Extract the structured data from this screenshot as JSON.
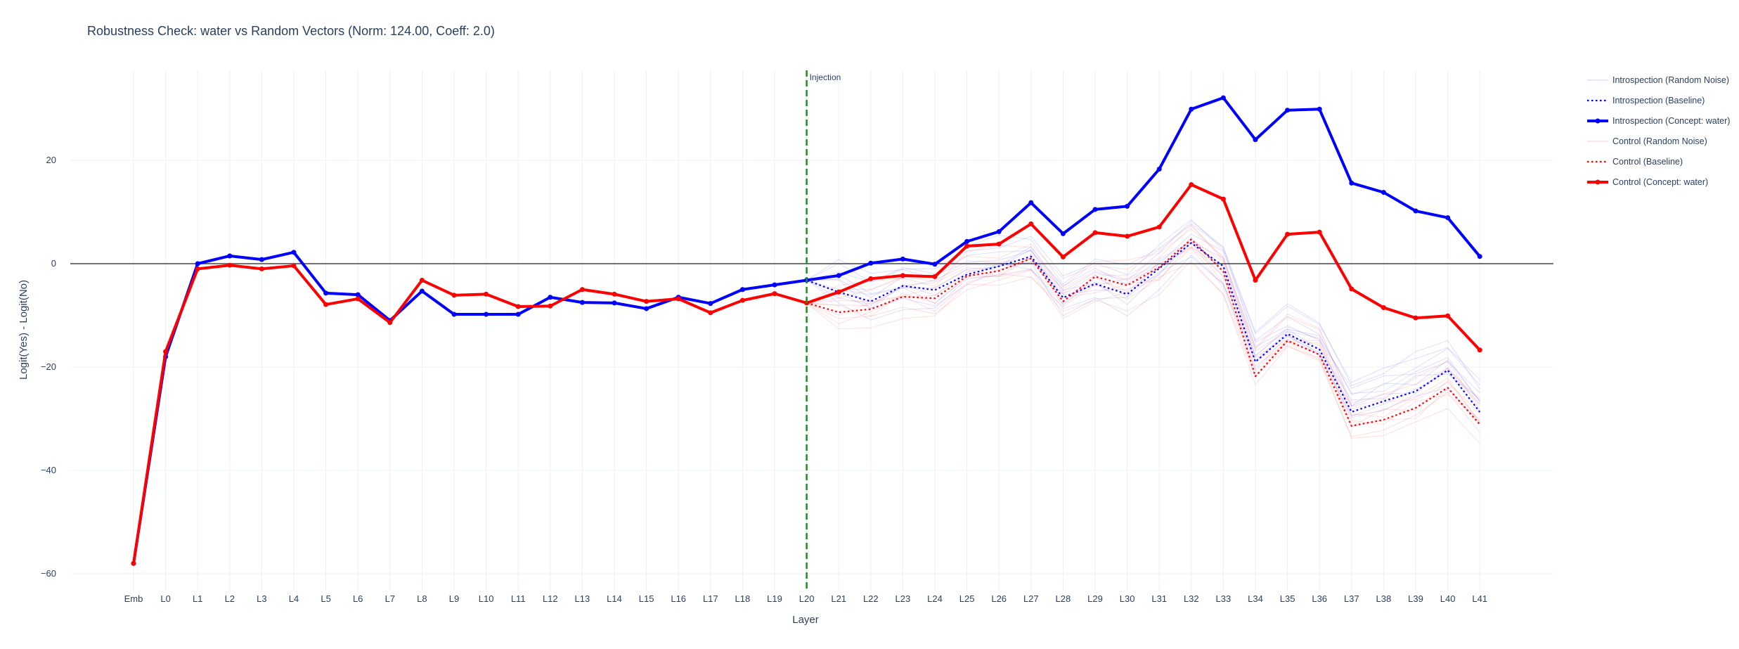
{
  "chart_data": {
    "type": "line",
    "title": "Robustness Check: water vs Random Vectors (Norm: 124.00, Coeff: 2.0)",
    "xlabel": "Layer",
    "ylabel": "Logit(Yes) - Logit(No)",
    "ylim": [
      -63,
      38
    ],
    "yticks": [
      -60,
      -40,
      -20,
      0,
      20
    ],
    "ytick_labels": [
      "−60",
      "−40",
      "−20",
      "0",
      "20"
    ],
    "grid": true,
    "legend_position": "right",
    "zero_line": true,
    "annotation": {
      "text": "Injection",
      "x": "L20",
      "color": "#228b22"
    },
    "categories": [
      "Emb",
      "L0",
      "L1",
      "L2",
      "L3",
      "L4",
      "L5",
      "L6",
      "L7",
      "L8",
      "L9",
      "L10",
      "L11",
      "L12",
      "L13",
      "L14",
      "L15",
      "L16",
      "L17",
      "L18",
      "L19",
      "L20",
      "L21",
      "L22",
      "L23",
      "L24",
      "L25",
      "L26",
      "L27",
      "L28",
      "L29",
      "L30",
      "L31",
      "L32",
      "L33",
      "L34",
      "L35",
      "L36",
      "L37",
      "L38",
      "L39",
      "L40",
      "L41"
    ],
    "series": [
      {
        "name": "Introspection (Random Noise)",
        "color": "#0000ff",
        "style": "faint",
        "legend_index": 0,
        "values": [
          -58,
          -18,
          0,
          1.5,
          0.8,
          2.2,
          -5.7,
          -6,
          -11,
          -5.3,
          -9.8,
          -9.8,
          -9.8,
          -6.5,
          -7.5,
          -7.6,
          -8.7,
          -6.5,
          -7.7,
          -5,
          -4.1,
          -3.2,
          -3.5,
          -6.5,
          -3.8,
          -4.5,
          -1,
          0.5,
          2,
          -6,
          -3,
          -5,
          0,
          5,
          0,
          -17,
          -12,
          -15,
          -26,
          -24,
          -22,
          -19,
          -26
        ]
      },
      {
        "name": "Introspection (Baseline)",
        "color": "#0000ff",
        "style": "dot",
        "legend_index": 1,
        "values": [
          -58,
          -18,
          0,
          1.5,
          0.8,
          2.2,
          -5.7,
          -6,
          -11,
          -5.3,
          -9.8,
          -9.8,
          -9.8,
          -6.5,
          -7.5,
          -7.6,
          -8.7,
          -6.5,
          -7.7,
          -5,
          -4.1,
          -3.2,
          -5.5,
          -7.3,
          -4.3,
          -5.1,
          -2.1,
          -0.5,
          1.4,
          -6.6,
          -3.9,
          -5.9,
          -0.9,
          4,
          -0.5,
          -19,
          -13.6,
          -16.6,
          -28.7,
          -26.6,
          -24.7,
          -20.6,
          -28.7
        ]
      },
      {
        "name": "Introspection (Concept: water)",
        "color": "#0000ff",
        "style": "thick",
        "legend_index": 2,
        "values": [
          -58,
          -18,
          0,
          1.5,
          0.8,
          2.2,
          -5.7,
          -6,
          -11,
          -5.3,
          -9.8,
          -9.8,
          -9.8,
          -6.5,
          -7.5,
          -7.6,
          -8.7,
          -6.5,
          -7.7,
          -5,
          -4.1,
          -3.2,
          -2.3,
          0.1,
          0.9,
          -0.1,
          4.3,
          6.2,
          11.8,
          5.8,
          10.5,
          11.1,
          18.3,
          29.9,
          32.1,
          24,
          29.7,
          29.9,
          15.6,
          13.8,
          10.2,
          8.9,
          1.4
        ]
      },
      {
        "name": "Control (Random Noise)",
        "color": "#ff0000",
        "style": "faint",
        "legend_index": 3,
        "values": [
          -58,
          -17,
          -1,
          -0.3,
          -1,
          -0.4,
          -7.9,
          -6.8,
          -11.4,
          -3.2,
          -6.1,
          -5.9,
          -8.3,
          -8.2,
          -5,
          -5.9,
          -7.3,
          -6.8,
          -9.5,
          -7.1,
          -5.8,
          -7.6,
          -8.5,
          -8,
          -5.5,
          -6,
          -2,
          -1.5,
          0.5,
          -6.5,
          -3.5,
          -4,
          -1,
          4,
          -2,
          -20,
          -14,
          -16,
          -30,
          -29,
          -27,
          -23,
          -30
        ]
      },
      {
        "name": "Control (Baseline)",
        "color": "#ff0000",
        "style": "dot",
        "legend_index": 4,
        "values": [
          -58,
          -17,
          -1,
          -0.3,
          -1,
          -0.4,
          -7.9,
          -6.8,
          -11.4,
          -3.2,
          -6.1,
          -5.9,
          -8.3,
          -8.2,
          -5,
          -5.9,
          -7.3,
          -6.8,
          -9.5,
          -7.1,
          -5.8,
          -7.6,
          -9.4,
          -8.8,
          -6.4,
          -6.7,
          -2.4,
          -1.4,
          1,
          -7.3,
          -2.5,
          -4.2,
          -0.7,
          4.7,
          -1.5,
          -21.8,
          -14.9,
          -17.6,
          -31.4,
          -30.2,
          -27.9,
          -24,
          -31.1
        ]
      },
      {
        "name": "Control (Concept: water)",
        "color": "#ff0000",
        "style": "thick",
        "legend_index": 5,
        "values": [
          -58,
          -17,
          -1,
          -0.3,
          -1,
          -0.4,
          -7.9,
          -6.8,
          -11.4,
          -3.2,
          -6.1,
          -5.9,
          -8.3,
          -8.2,
          -5,
          -5.9,
          -7.3,
          -6.8,
          -9.5,
          -7.1,
          -5.8,
          -7.6,
          -5.5,
          -2.9,
          -2.3,
          -2.5,
          3.4,
          3.8,
          7.7,
          1.3,
          6,
          5.3,
          7.1,
          15.3,
          12.5,
          -3.2,
          5.7,
          6.1,
          -4.9,
          -8.5,
          -10.5,
          -10.1,
          -16.7
        ]
      }
    ]
  }
}
